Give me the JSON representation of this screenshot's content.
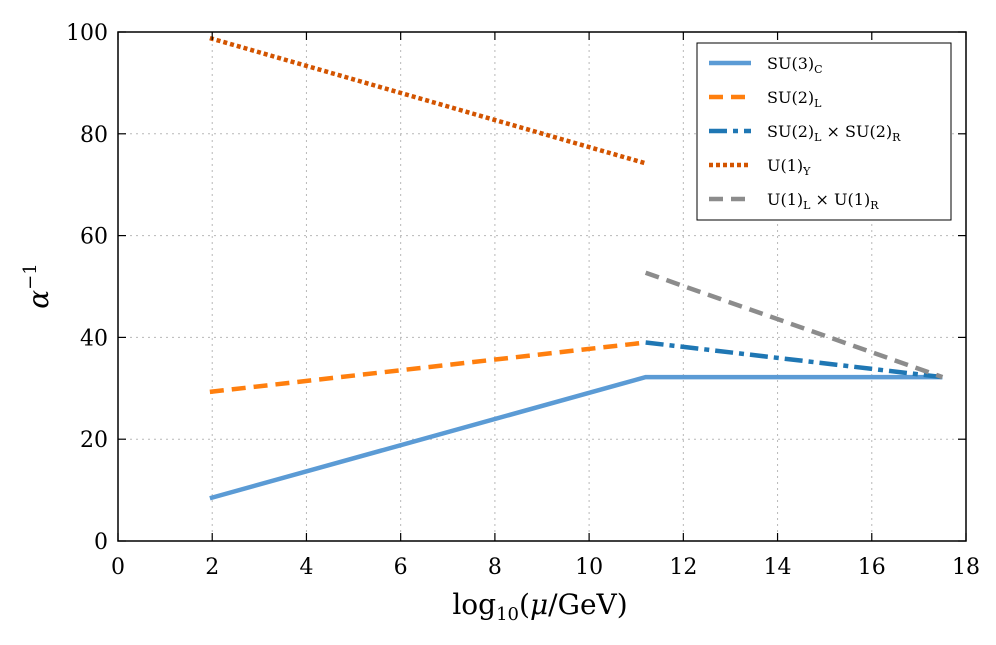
{
  "chart_data": {
    "type": "line",
    "xlabel": "log10(μ/GeV)",
    "ylabel": "α⁻¹",
    "xlim": [
      0,
      18
    ],
    "ylim": [
      0,
      100
    ],
    "xticks": [
      0,
      2,
      4,
      6,
      8,
      10,
      12,
      14,
      16,
      18
    ],
    "yticks": [
      0,
      20,
      40,
      60,
      80,
      100
    ],
    "grid": true,
    "legend_position": "top-right",
    "series": [
      {
        "name": "SU(3)_C",
        "label_main": "SU(3)",
        "label_sub": "C",
        "color": "#5b9bd5",
        "style": "solid",
        "points": [
          [
            1.95,
            8.4
          ],
          [
            11.2,
            32.2
          ],
          [
            17.5,
            32.2
          ]
        ]
      },
      {
        "name": "SU(2)_L",
        "label_main": "SU(2)",
        "label_sub": "L",
        "color": "#ff7f0e",
        "style": "dashed",
        "points": [
          [
            1.95,
            29.3
          ],
          [
            11.2,
            39.0
          ]
        ]
      },
      {
        "name": "SU(2)_L × SU(2)_R",
        "label_main": "SU(2)",
        "label_sub": "L",
        "label_mid": " × SU(2)",
        "label_sub2": "R",
        "color": "#1f77b4",
        "style": "dashdot",
        "points": [
          [
            11.2,
            39.0
          ],
          [
            17.5,
            32.2
          ]
        ]
      },
      {
        "name": "U(1)_Y",
        "label_main": "U(1)",
        "label_sub": "Y",
        "color": "#d35400",
        "style": "dotted",
        "points": [
          [
            1.95,
            98.8
          ],
          [
            11.2,
            74.2
          ]
        ]
      },
      {
        "name": "U(1)_L × U(1)_R",
        "label_main": "U(1)",
        "label_sub": "L",
        "label_mid": " × U(1)",
        "label_sub2": "R",
        "color": "#8c8c8c",
        "style": "dashed",
        "points": [
          [
            11.2,
            52.7
          ],
          [
            17.5,
            32.2
          ]
        ]
      }
    ]
  }
}
